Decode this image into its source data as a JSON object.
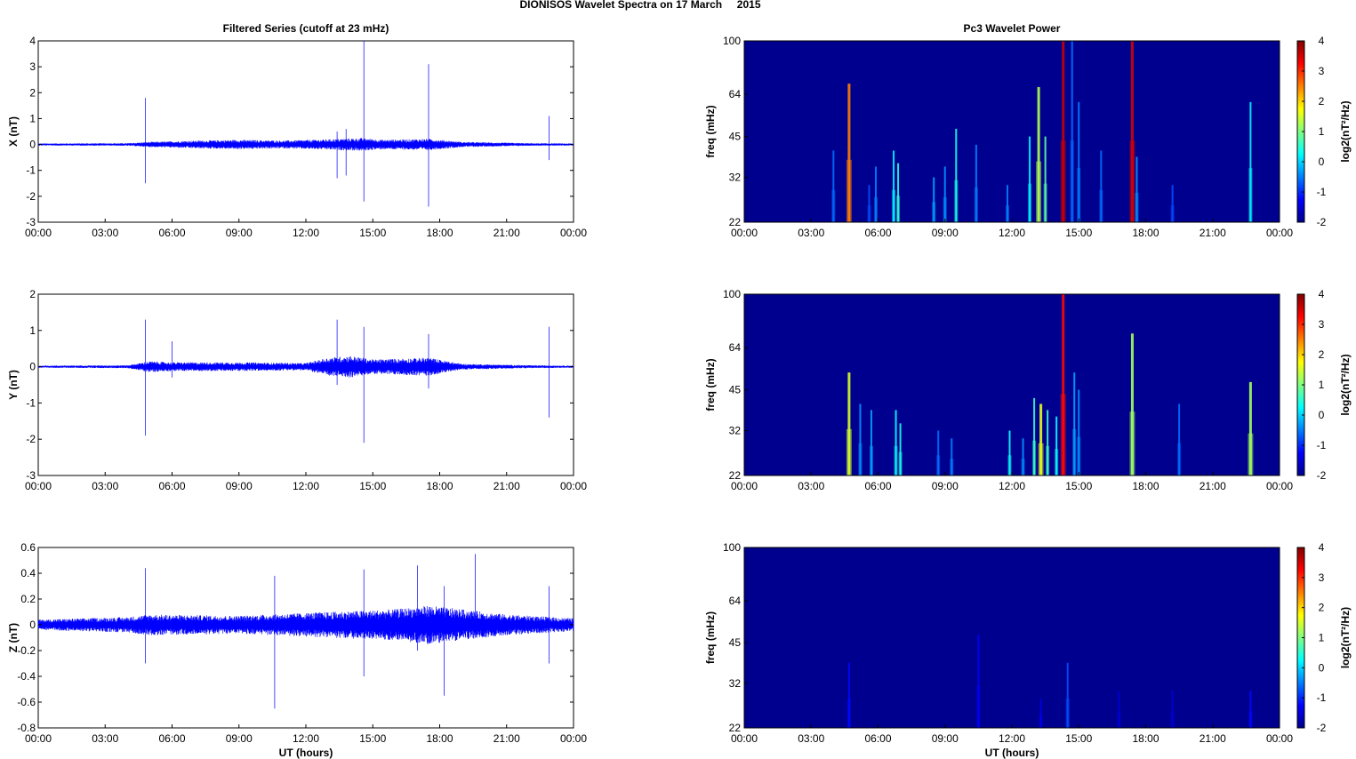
{
  "figure_title": "DIONISOS Wavelet Spectra on 17 March     2015",
  "colors": {
    "trace": "#0000ff",
    "axis": "#000000",
    "spectrum_background": "#00008f"
  },
  "chart_data": [
    {
      "type": "line",
      "panel": "filtered-x",
      "title": "Filtered Series (cutoff at 23 mHz)",
      "ylabel": "X (nT)",
      "xlabel": "",
      "xlim": [
        0,
        24
      ],
      "ylim": [
        -3,
        4
      ],
      "yticks": [
        "4",
        "3",
        "2",
        "1",
        "0",
        "-1",
        "-2",
        "-3"
      ],
      "xticks": [
        "00:00",
        "03:00",
        "06:00",
        "09:00",
        "12:00",
        "15:00",
        "18:00",
        "21:00",
        "00:00"
      ],
      "noise_envelope": [
        [
          0,
          0.04
        ],
        [
          4,
          0.05
        ],
        [
          5,
          0.1
        ],
        [
          6,
          0.12
        ],
        [
          7,
          0.15
        ],
        [
          9,
          0.18
        ],
        [
          11,
          0.15
        ],
        [
          13,
          0.2
        ],
        [
          14.5,
          0.25
        ],
        [
          15.5,
          0.18
        ],
        [
          17.5,
          0.22
        ],
        [
          19,
          0.1
        ],
        [
          22,
          0.05
        ],
        [
          24,
          0.04
        ]
      ],
      "spikes": [
        [
          4.8,
          1.8,
          -1.5
        ],
        [
          13.4,
          0.5,
          -1.3
        ],
        [
          13.8,
          0.6,
          -1.2
        ],
        [
          14.6,
          4.0,
          -2.2
        ],
        [
          17.5,
          3.1,
          -2.4
        ],
        [
          22.9,
          1.1,
          -0.6
        ]
      ]
    },
    {
      "type": "line",
      "panel": "filtered-y",
      "title": "",
      "ylabel": "Y (nT)",
      "xlabel": "",
      "xlim": [
        0,
        24
      ],
      "ylim": [
        -3,
        2
      ],
      "yticks": [
        "2",
        "1",
        "0",
        "-1",
        "-2",
        "-3"
      ],
      "xticks": [
        "00:00",
        "03:00",
        "06:00",
        "09:00",
        "12:00",
        "15:00",
        "18:00",
        "21:00",
        "00:00"
      ],
      "noise_envelope": [
        [
          0,
          0.03
        ],
        [
          4,
          0.04
        ],
        [
          5,
          0.15
        ],
        [
          6,
          0.12
        ],
        [
          9,
          0.12
        ],
        [
          12,
          0.1
        ],
        [
          13,
          0.25
        ],
        [
          14,
          0.3
        ],
        [
          15,
          0.2
        ],
        [
          17.5,
          0.25
        ],
        [
          19,
          0.08
        ],
        [
          22,
          0.04
        ],
        [
          24,
          0.03
        ]
      ],
      "spikes": [
        [
          4.8,
          1.3,
          -1.9
        ],
        [
          6,
          0.7,
          -0.3
        ],
        [
          13.4,
          1.3,
          -0.5
        ],
        [
          14.6,
          1.1,
          -2.1
        ],
        [
          17.5,
          0.9,
          -0.6
        ],
        [
          22.9,
          1.1,
          -1.4
        ]
      ]
    },
    {
      "type": "line",
      "panel": "filtered-z",
      "title": "",
      "ylabel": "Z (nT)",
      "xlabel": "UT (hours)",
      "xlim": [
        0,
        24
      ],
      "ylim": [
        -0.8,
        0.6
      ],
      "yticks": [
        "0.6",
        "0.4",
        "0.2",
        "0",
        "-0.2",
        "-0.4",
        "-0.6",
        "-0.8"
      ],
      "xticks": [
        "00:00",
        "03:00",
        "06:00",
        "09:00",
        "12:00",
        "15:00",
        "18:00",
        "21:00",
        "00:00"
      ],
      "noise_envelope": [
        [
          0,
          0.04
        ],
        [
          4,
          0.06
        ],
        [
          5,
          0.08
        ],
        [
          9,
          0.07
        ],
        [
          13,
          0.1
        ],
        [
          16,
          0.12
        ],
        [
          17.5,
          0.15
        ],
        [
          19,
          0.12
        ],
        [
          21,
          0.08
        ],
        [
          24,
          0.05
        ]
      ],
      "spikes": [
        [
          4.8,
          0.44,
          -0.3
        ],
        [
          10.6,
          0.38,
          -0.65
        ],
        [
          14.6,
          0.43,
          -0.4
        ],
        [
          17,
          0.46,
          -0.2
        ],
        [
          18.2,
          0.3,
          -0.55
        ],
        [
          19.6,
          0.55,
          -0.1
        ],
        [
          22.9,
          0.3,
          -0.3
        ]
      ]
    },
    {
      "type": "heatmap",
      "panel": "wavelet-x",
      "title": "Pc3 Wavelet Power",
      "ylabel": "freq (mHz)",
      "xlabel": "",
      "xlim": [
        0,
        24
      ],
      "ylim_log": [
        22,
        100
      ],
      "yticks": [
        "100",
        "64",
        "45",
        "32",
        "22"
      ],
      "xticks": [
        "00:00",
        "03:00",
        "06:00",
        "09:00",
        "12:00",
        "15:00",
        "18:00",
        "21:00",
        "00:00"
      ],
      "colorbar_label": "log2(nT²/Hz)",
      "colorbar_ticks": [
        "4",
        "3",
        "2",
        "1",
        "0",
        "-1",
        "-2"
      ],
      "streaks": [
        [
          4,
          40,
          -0.6
        ],
        [
          4.7,
          70,
          2.5
        ],
        [
          5.6,
          30,
          -0.8
        ],
        [
          5.9,
          35,
          -0.5
        ],
        [
          6.7,
          40,
          0.2
        ],
        [
          6.9,
          36,
          0.5
        ],
        [
          8.5,
          32,
          -0.3
        ],
        [
          9,
          35,
          -0.4
        ],
        [
          9.5,
          48,
          0.4
        ],
        [
          10.4,
          42,
          -0.5
        ],
        [
          11.8,
          30,
          -0.5
        ],
        [
          12.8,
          45,
          0.2
        ],
        [
          13.2,
          68,
          1.3
        ],
        [
          13.5,
          45,
          0.8
        ],
        [
          14.3,
          100,
          3.6
        ],
        [
          14.7,
          100,
          -0.6
        ],
        [
          15,
          60,
          -0.5
        ],
        [
          16,
          40,
          -0.6
        ],
        [
          17.4,
          100,
          3.5
        ],
        [
          17.6,
          38,
          -0.4
        ],
        [
          19.2,
          30,
          -0.8
        ],
        [
          22.7,
          60,
          0.2
        ]
      ]
    },
    {
      "type": "heatmap",
      "panel": "wavelet-y",
      "title": "",
      "ylabel": "freq (mHz)",
      "xlabel": "",
      "xlim": [
        0,
        24
      ],
      "ylim_log": [
        22,
        100
      ],
      "yticks": [
        "100",
        "64",
        "45",
        "32",
        "22"
      ],
      "xticks": [
        "00:00",
        "03:00",
        "06:00",
        "09:00",
        "12:00",
        "15:00",
        "18:00",
        "21:00",
        "00:00"
      ],
      "colorbar_label": "log2(nT²/Hz)",
      "colorbar_ticks": [
        "4",
        "3",
        "2",
        "1",
        "0",
        "-1",
        "-2"
      ],
      "streaks": [
        [
          4.7,
          52,
          1.5
        ],
        [
          5.2,
          40,
          -0.4
        ],
        [
          5.7,
          38,
          -0.3
        ],
        [
          6.8,
          38,
          0.3
        ],
        [
          7,
          34,
          0.4
        ],
        [
          8.7,
          32,
          -0.6
        ],
        [
          9.3,
          30,
          -0.5
        ],
        [
          11.9,
          32,
          0.3
        ],
        [
          12.5,
          30,
          -0.4
        ],
        [
          13,
          42,
          0.6
        ],
        [
          13.3,
          40,
          1.6
        ],
        [
          13.6,
          38,
          0.6
        ],
        [
          14,
          36,
          0.3
        ],
        [
          14.3,
          100,
          3.2
        ],
        [
          14.8,
          52,
          -0.3
        ],
        [
          15,
          45,
          -0.4
        ],
        [
          17.4,
          72,
          1.2
        ],
        [
          19.5,
          40,
          -0.6
        ],
        [
          22.7,
          48,
          1.2
        ]
      ]
    },
    {
      "type": "heatmap",
      "panel": "wavelet-z",
      "title": "",
      "ylabel": "freq (mHz)",
      "xlabel": "UT (hours)",
      "xlim": [
        0,
        24
      ],
      "ylim_log": [
        22,
        100
      ],
      "yticks": [
        "100",
        "64",
        "45",
        "32",
        "22"
      ],
      "xticks": [
        "00:00",
        "03:00",
        "06:00",
        "09:00",
        "12:00",
        "15:00",
        "18:00",
        "21:00",
        "00:00"
      ],
      "colorbar_label": "log2(nT²/Hz)",
      "colorbar_ticks": [
        "4",
        "3",
        "2",
        "1",
        "0",
        "-1",
        "-2"
      ],
      "streaks": [
        [
          4.7,
          38,
          -1.2
        ],
        [
          10.5,
          48,
          -1.3
        ],
        [
          13.3,
          28,
          -1.4
        ],
        [
          14.5,
          38,
          -0.8
        ],
        [
          16.8,
          30,
          -1.5
        ],
        [
          19.2,
          30,
          -1.5
        ],
        [
          22.7,
          30,
          -1.2
        ]
      ]
    }
  ]
}
